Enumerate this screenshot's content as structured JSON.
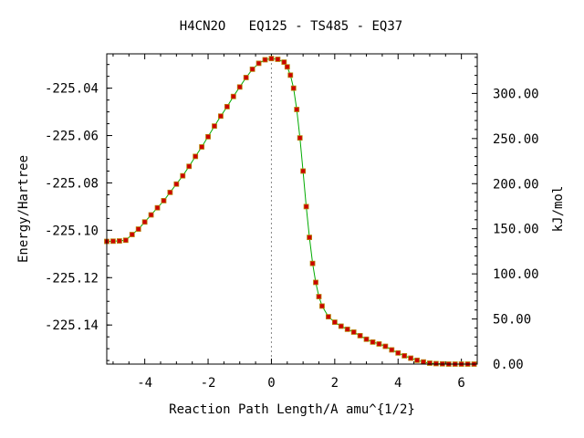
{
  "chart_data": {
    "type": "line",
    "title": "H4CN2O   EQ125 - TS485 - EQ37",
    "xlabel": "Reaction Path Length/A amu^{1/2}",
    "ylabel": "Energy/Hartree",
    "y2label": "kJ/mol",
    "xlim": [
      -5.2,
      6.5
    ],
    "ylim": [
      -225.1565,
      -225.0255
    ],
    "y2lim": [
      0,
      343.9
    ],
    "x_ticks": [
      "-4",
      "-2",
      "0",
      "2",
      "4",
      "6"
    ],
    "y_ticks": [
      "-225.04",
      "-225.06",
      "-225.08",
      "-225.10",
      "-225.12",
      "-225.14"
    ],
    "y2_ticks": [
      "0.00",
      "50.00",
      "100.00",
      "150.00",
      "200.00",
      "250.00",
      "300.00"
    ],
    "ts_marker_x": 0,
    "grid": false,
    "colors": {
      "line": "#00aa00",
      "marker": "#cc0000",
      "marker_edge": "#b8860b",
      "ts_line": "#888888"
    },
    "series": [
      {
        "points": [
          [
            -5.2,
            -225.1047
          ],
          [
            -5.0,
            -225.1046
          ],
          [
            -4.8,
            -225.1045
          ],
          [
            -4.6,
            -225.1042
          ],
          [
            -4.4,
            -225.1018
          ],
          [
            -4.2,
            -225.0995
          ],
          [
            -4.0,
            -225.0965
          ],
          [
            -3.8,
            -225.0935
          ],
          [
            -3.6,
            -225.0905
          ],
          [
            -3.4,
            -225.0875
          ],
          [
            -3.2,
            -225.084
          ],
          [
            -3.0,
            -225.0805
          ],
          [
            -2.8,
            -225.077
          ],
          [
            -2.6,
            -225.073
          ],
          [
            -2.4,
            -225.0688
          ],
          [
            -2.2,
            -225.0648
          ],
          [
            -2.0,
            -225.0605
          ],
          [
            -1.8,
            -225.056
          ],
          [
            -1.6,
            -225.0518
          ],
          [
            -1.4,
            -225.0478
          ],
          [
            -1.2,
            -225.0435
          ],
          [
            -1.0,
            -225.0395
          ],
          [
            -0.8,
            -225.0355
          ],
          [
            -0.6,
            -225.032
          ],
          [
            -0.4,
            -225.0295
          ],
          [
            -0.2,
            -225.028
          ],
          [
            0.0,
            -225.0275
          ],
          [
            0.2,
            -225.0278
          ],
          [
            0.4,
            -225.029
          ],
          [
            0.5,
            -225.031
          ],
          [
            0.6,
            -225.0345
          ],
          [
            0.7,
            -225.04
          ],
          [
            0.8,
            -225.049
          ],
          [
            0.9,
            -225.061
          ],
          [
            1.0,
            -225.075
          ],
          [
            1.1,
            -225.09
          ],
          [
            1.2,
            -225.103
          ],
          [
            1.3,
            -225.114
          ],
          [
            1.4,
            -225.122
          ],
          [
            1.5,
            -225.128
          ],
          [
            1.6,
            -225.132
          ],
          [
            1.8,
            -225.1365
          ],
          [
            2.0,
            -225.1388
          ],
          [
            2.2,
            -225.1405
          ],
          [
            2.4,
            -225.1418
          ],
          [
            2.6,
            -225.143
          ],
          [
            2.8,
            -225.1445
          ],
          [
            3.0,
            -225.146
          ],
          [
            3.2,
            -225.1472
          ],
          [
            3.4,
            -225.148
          ],
          [
            3.6,
            -225.149
          ],
          [
            3.8,
            -225.1505
          ],
          [
            4.0,
            -225.1518
          ],
          [
            4.2,
            -225.153
          ],
          [
            4.4,
            -225.154
          ],
          [
            4.6,
            -225.1549
          ],
          [
            4.8,
            -225.1556
          ],
          [
            5.0,
            -225.1561
          ],
          [
            5.2,
            -225.1563
          ],
          [
            5.4,
            -225.1564
          ],
          [
            5.6,
            -225.1565
          ],
          [
            5.8,
            -225.1565
          ],
          [
            6.0,
            -225.1565
          ],
          [
            6.2,
            -225.1565
          ],
          [
            6.4,
            -225.1565
          ]
        ]
      }
    ]
  }
}
